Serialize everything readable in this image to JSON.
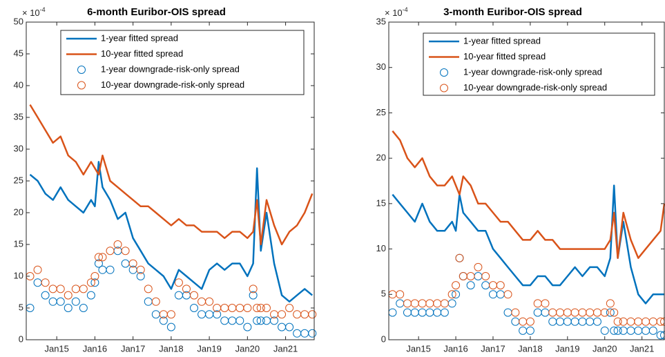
{
  "chart_data": [
    {
      "type": "line",
      "title": "6-month Euribor-OIS spread",
      "y_multiplier": "× 10",
      "y_exponent": "-4",
      "x": [
        2014.3,
        2014.5,
        2014.7,
        2014.9,
        2015.1,
        2015.3,
        2015.5,
        2015.7,
        2015.9,
        2016.0,
        2016.1,
        2016.2,
        2016.4,
        2016.6,
        2016.8,
        2017.0,
        2017.2,
        2017.4,
        2017.6,
        2017.8,
        2018.0,
        2018.2,
        2018.4,
        2018.6,
        2018.8,
        2019.0,
        2019.2,
        2019.4,
        2019.6,
        2019.8,
        2020.0,
        2020.15,
        2020.25,
        2020.35,
        2020.5,
        2020.7,
        2020.9,
        2021.1,
        2021.3,
        2021.5,
        2021.7
      ],
      "xlim": [
        2014.2,
        2021.75
      ],
      "xticks": [
        {
          "value": 2015,
          "label": "Jan15"
        },
        {
          "value": 2016,
          "label": "Jan16"
        },
        {
          "value": 2017,
          "label": "Jan17"
        },
        {
          "value": 2018,
          "label": "Jan18"
        },
        {
          "value": 2019,
          "label": "Jan19"
        },
        {
          "value": 2020,
          "label": "Jan20"
        },
        {
          "value": 2021,
          "label": "Jan21"
        }
      ],
      "ylim": [
        0,
        50
      ],
      "yticks": [
        0,
        5,
        10,
        15,
        20,
        25,
        30,
        35,
        40,
        45,
        50
      ],
      "series": [
        {
          "name": "1-year fitted spread",
          "color": "#0072bd",
          "mode": "line",
          "values": [
            26,
            25,
            23,
            22,
            24,
            22,
            21,
            20,
            22,
            21,
            28,
            24,
            22,
            19,
            20,
            16,
            14,
            12,
            11,
            10,
            8,
            11,
            10,
            9,
            8,
            11,
            12,
            11,
            12,
            12,
            10,
            12,
            27,
            14,
            20,
            12,
            7,
            6,
            7,
            8,
            7
          ]
        },
        {
          "name": "10-year fitted spread",
          "color": "#d95319",
          "mode": "line",
          "values": [
            37,
            35,
            33,
            31,
            32,
            29,
            28,
            26,
            28,
            27,
            26,
            29,
            25,
            24,
            23,
            22,
            21,
            21,
            20,
            19,
            18,
            19,
            18,
            18,
            17,
            17,
            17,
            16,
            17,
            17,
            16,
            17,
            22,
            15,
            22,
            18,
            15,
            17,
            18,
            20,
            23
          ]
        },
        {
          "name": "1-year downgrade-risk-only spread",
          "color": "#0072bd",
          "mode": "markers",
          "values": [
            5,
            9,
            7,
            6,
            6,
            5,
            6,
            5,
            7,
            9,
            12,
            11,
            11,
            14,
            12,
            11,
            10,
            6,
            4,
            3,
            2,
            7,
            7,
            5,
            4,
            4,
            4,
            3,
            3,
            3,
            2,
            7,
            3,
            3,
            3,
            3,
            2,
            2,
            1,
            1,
            1
          ]
        },
        {
          "name": "10-year downgrade-risk-only spread",
          "color": "#d95319",
          "mode": "markers",
          "values": [
            10,
            11,
            9,
            8,
            8,
            7,
            8,
            8,
            9,
            10,
            13,
            13,
            14,
            15,
            14,
            12,
            11,
            8,
            6,
            4,
            4,
            9,
            8,
            7,
            6,
            6,
            5,
            5,
            5,
            5,
            5,
            8,
            5,
            5,
            5,
            4,
            4,
            5,
            4,
            4,
            4
          ]
        }
      ]
    },
    {
      "type": "line",
      "title": "3-month Euribor-OIS spread",
      "y_multiplier": "× 10",
      "y_exponent": "-4",
      "x": [
        2014.3,
        2014.5,
        2014.7,
        2014.9,
        2015.1,
        2015.3,
        2015.5,
        2015.7,
        2015.9,
        2016.0,
        2016.1,
        2016.2,
        2016.4,
        2016.6,
        2016.8,
        2017.0,
        2017.2,
        2017.4,
        2017.6,
        2017.8,
        2018.0,
        2018.2,
        2018.4,
        2018.6,
        2018.8,
        2019.0,
        2019.2,
        2019.4,
        2019.6,
        2019.8,
        2020.0,
        2020.15,
        2020.25,
        2020.35,
        2020.5,
        2020.7,
        2020.9,
        2021.1,
        2021.3,
        2021.5,
        2021.6
      ],
      "xlim": [
        2014.2,
        2021.6
      ],
      "xticks": [
        {
          "value": 2015,
          "label": "Jan15"
        },
        {
          "value": 2016,
          "label": "Jan16"
        },
        {
          "value": 2017,
          "label": "Jan17"
        },
        {
          "value": 2018,
          "label": "Jan18"
        },
        {
          "value": 2019,
          "label": "Jan19"
        },
        {
          "value": 2020,
          "label": "Jan20"
        },
        {
          "value": 2021,
          "label": "Jan21"
        }
      ],
      "ylim": [
        0,
        35
      ],
      "yticks": [
        0,
        5,
        10,
        15,
        20,
        25,
        30,
        35
      ],
      "series": [
        {
          "name": "1-year fitted spread",
          "color": "#0072bd",
          "mode": "line",
          "values": [
            16,
            15,
            14,
            13,
            15,
            13,
            12,
            12,
            13,
            12,
            16,
            14,
            13,
            12,
            12,
            10,
            9,
            8,
            7,
            6,
            6,
            7,
            7,
            6,
            6,
            7,
            8,
            7,
            8,
            8,
            7,
            9,
            17,
            9,
            13,
            8,
            5,
            4,
            5,
            5,
            5
          ]
        },
        {
          "name": "10-year fitted spread",
          "color": "#d95319",
          "mode": "line",
          "values": [
            23,
            22,
            20,
            19,
            20,
            18,
            17,
            17,
            18,
            17,
            16,
            18,
            17,
            15,
            15,
            14,
            13,
            13,
            12,
            11,
            11,
            12,
            11,
            11,
            10,
            10,
            10,
            10,
            10,
            10,
            10,
            11,
            14,
            9,
            14,
            11,
            9,
            10,
            11,
            12,
            15
          ]
        },
        {
          "name": "1-year downgrade-risk-only spread",
          "color": "#0072bd",
          "mode": "markers",
          "values": [
            3,
            4,
            3,
            3,
            3,
            3,
            3,
            3,
            4,
            5,
            9,
            7,
            6,
            7,
            6,
            5,
            5,
            3,
            2,
            1,
            1,
            3,
            3,
            2,
            2,
            2,
            2,
            2,
            2,
            2,
            1,
            3,
            1,
            1,
            1,
            1,
            1,
            1,
            1,
            0.5,
            0.5
          ]
        },
        {
          "name": "10-year downgrade-risk-only spread",
          "color": "#d95319",
          "mode": "markers",
          "values": [
            5,
            5,
            4,
            4,
            4,
            4,
            4,
            4,
            5,
            6,
            9,
            7,
            7,
            8,
            7,
            6,
            6,
            5,
            3,
            2,
            2,
            4,
            4,
            3,
            3,
            3,
            3,
            3,
            3,
            3,
            3,
            4,
            3,
            2,
            2,
            2,
            2,
            2,
            2,
            2,
            2
          ]
        }
      ]
    }
  ]
}
